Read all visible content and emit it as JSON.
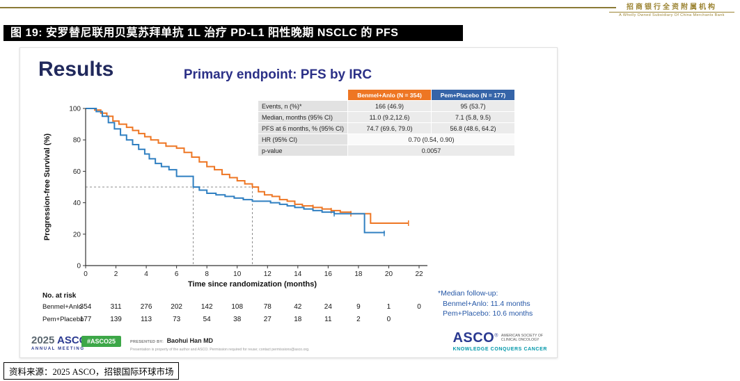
{
  "header": {
    "brand": {
      "line1": "招商银行全资附属机构",
      "line2": "A Wholly Owned Subsidiary Of China Merchants Bank",
      "gold_color": "#8A7A35"
    },
    "figure_title": "图 19: 安罗替尼联用贝莫苏拜单抗 1L 治疗 PD-L1 阳性晚期 NSCLC 的 PFS"
  },
  "slide": {
    "results_title": "Results",
    "endpoint_title": "Primary endpoint: PFS by IRC",
    "accent_navy": "#2A3990",
    "stats_table": {
      "col_headers": [
        {
          "label": "Benmel+Anlo (N = 354)",
          "color": "#EE7623"
        },
        {
          "label": "Pem+Placebo (N = 177)",
          "color": "#3564A8"
        }
      ],
      "rows": [
        {
          "label": "Events, n (%)*",
          "values": [
            "166 (46.9)",
            "95 (53.7)"
          ]
        },
        {
          "label": "Median, months (95% CI)",
          "values": [
            "11.0 (9.2,12.6)",
            "7.1 (5.8, 9.5)"
          ]
        },
        {
          "label": "PFS at 6 months, % (95% CI)",
          "values": [
            "74.7 (69.6, 79.0)",
            "56.8 (48.6, 64.2)"
          ]
        },
        {
          "label": "HR (95% CI)",
          "value": "0.70 (0.54, 0.90)"
        },
        {
          "label": "p-value",
          "value": "0.0057"
        }
      ]
    },
    "followup_note": {
      "line1": "*Median follow-up:",
      "line2": "Benmel+Anlo: 11.4 months",
      "line3": "Pem+Placebo: 10.6 months"
    },
    "footer": {
      "meeting_year": "2025",
      "meeting_name": "ASCO",
      "meeting_sub": "ANNUAL MEETING",
      "hashtag": "#ASCO25",
      "hashtag_color": "#3DA748",
      "presented_by_label": "PRESENTED BY:",
      "presenter": "Baohui Han MD",
      "disclaimer": "Presentation is property of the author and ASCO. Permission required for reuse; contact permissions@asco.org.",
      "asco_logo": "ASCO",
      "society_line1": "AMERICAN SOCIETY OF",
      "society_line2": "CLINICAL ONCOLOGY",
      "tagline": "KNOWLEDGE CONQUERS CANCER",
      "tagline_color": "#0097A9"
    }
  },
  "chart_data": {
    "type": "line",
    "subtype": "kaplan-meier",
    "title": "Primary endpoint: PFS by IRC",
    "xlabel": "Time since randomization (months)",
    "ylabel": "Progression-free Survival (%)",
    "xlim": [
      0,
      22
    ],
    "ylim": [
      0,
      100
    ],
    "xticks": [
      0,
      2,
      4,
      6,
      8,
      10,
      12,
      14,
      16,
      18,
      20,
      22
    ],
    "yticks": [
      0,
      20,
      40,
      60,
      80,
      100
    ],
    "grid": false,
    "median_reference": {
      "y_percent": 50,
      "x_medians": [
        7.1,
        11.0
      ]
    },
    "series": [
      {
        "name": "Benmel+Anlo",
        "color": "#EE7623",
        "points": [
          [
            0,
            100
          ],
          [
            0.6,
            99
          ],
          [
            1,
            97
          ],
          [
            1.4,
            95
          ],
          [
            1.8,
            92
          ],
          [
            2.2,
            90
          ],
          [
            2.7,
            88
          ],
          [
            3.1,
            86
          ],
          [
            3.5,
            84
          ],
          [
            3.9,
            82
          ],
          [
            4.3,
            80
          ],
          [
            4.8,
            78
          ],
          [
            5.3,
            76
          ],
          [
            6,
            74.7
          ],
          [
            6.5,
            72
          ],
          [
            7,
            69
          ],
          [
            7.5,
            66
          ],
          [
            8,
            63
          ],
          [
            8.5,
            61
          ],
          [
            9,
            58
          ],
          [
            9.5,
            56
          ],
          [
            10,
            54
          ],
          [
            10.5,
            52
          ],
          [
            11,
            50
          ],
          [
            11.4,
            47
          ],
          [
            11.8,
            45
          ],
          [
            12.3,
            44
          ],
          [
            12.8,
            42
          ],
          [
            13.3,
            41
          ],
          [
            13.8,
            39
          ],
          [
            14.3,
            38
          ],
          [
            15,
            37
          ],
          [
            15.6,
            36
          ],
          [
            16.2,
            35
          ],
          [
            16.8,
            34
          ],
          [
            17.5,
            33
          ],
          [
            18.8,
            27
          ],
          [
            21.3,
            27
          ]
        ],
        "censors": [
          [
            15,
            37
          ],
          [
            16.2,
            35
          ],
          [
            17.5,
            33
          ],
          [
            21.3,
            27
          ]
        ]
      },
      {
        "name": "Pem+Placebo",
        "color": "#2F7FC1",
        "points": [
          [
            0,
            100
          ],
          [
            0.7,
            98
          ],
          [
            1.1,
            95
          ],
          [
            1.5,
            91
          ],
          [
            1.9,
            87
          ],
          [
            2.3,
            83
          ],
          [
            2.7,
            80
          ],
          [
            3.1,
            77
          ],
          [
            3.5,
            74
          ],
          [
            3.9,
            71
          ],
          [
            4.2,
            68
          ],
          [
            4.6,
            65
          ],
          [
            5,
            63
          ],
          [
            5.5,
            61
          ],
          [
            6,
            56.8
          ],
          [
            7.1,
            50
          ],
          [
            7.5,
            48
          ],
          [
            8,
            46
          ],
          [
            8.6,
            45
          ],
          [
            9.2,
            44
          ],
          [
            9.8,
            43
          ],
          [
            10.4,
            42
          ],
          [
            11,
            41
          ],
          [
            12.2,
            40
          ],
          [
            12.8,
            39
          ],
          [
            13.3,
            38
          ],
          [
            13.8,
            37
          ],
          [
            14.4,
            36
          ],
          [
            15,
            35
          ],
          [
            15.6,
            34
          ],
          [
            16.4,
            33
          ],
          [
            18.4,
            21
          ],
          [
            19.7,
            20.5
          ]
        ],
        "censors": [
          [
            16.4,
            33
          ],
          [
            19.7,
            20.5
          ]
        ]
      }
    ],
    "risk_table": {
      "label": "No. at risk",
      "time_points": [
        0,
        2,
        4,
        6,
        8,
        10,
        12,
        14,
        16,
        18,
        20,
        22
      ],
      "rows": [
        {
          "name": "Benmel+Anlo",
          "counts": [
            354,
            311,
            276,
            202,
            142,
            108,
            78,
            42,
            24,
            9,
            1,
            0
          ]
        },
        {
          "name": "Pem+Placebo",
          "counts": [
            177,
            139,
            113,
            73,
            54,
            38,
            27,
            18,
            11,
            2,
            0
          ]
        }
      ]
    }
  },
  "footer": {
    "source": "资料来源：2025 ASCO，招银国际环球市场"
  }
}
